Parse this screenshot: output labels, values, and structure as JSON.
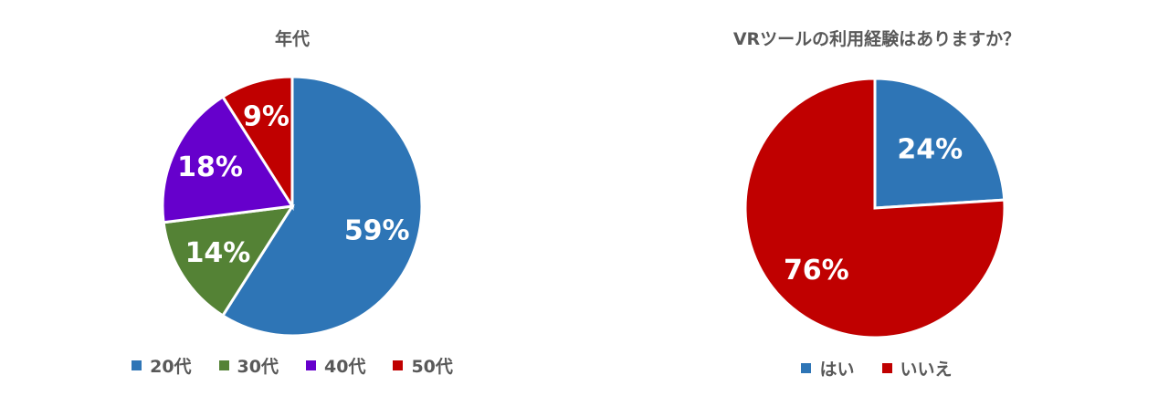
{
  "chart_data": [
    {
      "type": "pie",
      "title": "年代",
      "categories": [
        "20代",
        "30代",
        "40代",
        "50代"
      ],
      "values": [
        59,
        14,
        18,
        9
      ],
      "labels": [
        "59%",
        "14%",
        "18%",
        "9%"
      ],
      "colors": [
        "#2E75B6",
        "#548235",
        "#6600CC",
        "#C00000"
      ],
      "legend_position": "bottom"
    },
    {
      "type": "pie",
      "title": "VRツールの利用経験はありますか？",
      "categories": [
        "はい",
        "いいえ"
      ],
      "values": [
        24,
        76
      ],
      "labels": [
        "24%",
        "76%"
      ],
      "colors": [
        "#2E75B6",
        "#C00000"
      ],
      "legend_position": "bottom"
    }
  ]
}
